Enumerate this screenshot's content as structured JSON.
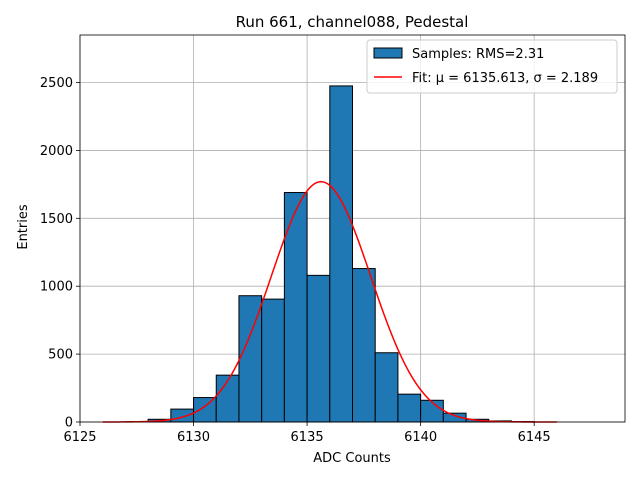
{
  "chart_data": {
    "type": "bar",
    "title": "Run 661, channel088, Pedestal",
    "xlabel": "ADC Counts",
    "ylabel": "Entries",
    "xlim": [
      6125,
      6149
    ],
    "ylim": [
      0,
      2850
    ],
    "xticks": [
      6125,
      6130,
      6135,
      6140,
      6145
    ],
    "yticks": [
      0,
      500,
      1000,
      1500,
      2000,
      2500
    ],
    "grid": true,
    "legend_position": "top-right",
    "histogram": {
      "name": "Samples: RMS=2.31",
      "color": "#1f77b4",
      "bin_width": 1,
      "bins": [
        {
          "left": 6127,
          "value": 2
        },
        {
          "left": 6128,
          "value": 20
        },
        {
          "left": 6129,
          "value": 95
        },
        {
          "left": 6130,
          "value": 180
        },
        {
          "left": 6131,
          "value": 345
        },
        {
          "left": 6132,
          "value": 930
        },
        {
          "left": 6133,
          "value": 905
        },
        {
          "left": 6134,
          "value": 1690
        },
        {
          "left": 6135,
          "value": 1080
        },
        {
          "left": 6136,
          "value": 2475
        },
        {
          "left": 6137,
          "value": 1130
        },
        {
          "left": 6138,
          "value": 510
        },
        {
          "left": 6139,
          "value": 205
        },
        {
          "left": 6140,
          "value": 160
        },
        {
          "left": 6141,
          "value": 65
        },
        {
          "left": 6142,
          "value": 20
        },
        {
          "left": 6143,
          "value": 8
        },
        {
          "left": 6144,
          "value": 3
        }
      ]
    },
    "fit": {
      "name": "Fit: μ = 6135.613, σ = 2.189",
      "color": "#ff0000",
      "mu": 6135.613,
      "sigma": 2.189,
      "amplitude": 1770,
      "x_range": [
        6126,
        6146
      ]
    }
  }
}
